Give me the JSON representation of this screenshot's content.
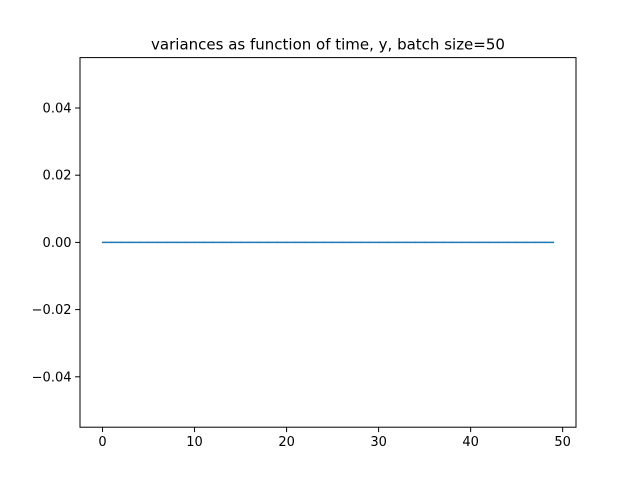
{
  "chart_data": {
    "type": "line",
    "title": "variances as function of time, y, batch size=50",
    "xlabel": "",
    "ylabel": "",
    "xlim": [
      -2.45,
      51.45
    ],
    "ylim": [
      -0.055,
      0.055
    ],
    "xticks": [
      0,
      10,
      20,
      30,
      40,
      50
    ],
    "xtick_labels": [
      "0",
      "10",
      "20",
      "30",
      "40",
      "50"
    ],
    "yticks": [
      -0.04,
      -0.02,
      0.0,
      0.02,
      0.04
    ],
    "ytick_labels": [
      "−0.04",
      "−0.02",
      "0.00",
      "0.02",
      "0.04"
    ],
    "grid": false,
    "series": [
      {
        "color": "#1f77b4",
        "x": [
          0,
          1,
          2,
          3,
          4,
          5,
          6,
          7,
          8,
          9,
          10,
          11,
          12,
          13,
          14,
          15,
          16,
          17,
          18,
          19,
          20,
          21,
          22,
          23,
          24,
          25,
          26,
          27,
          28,
          29,
          30,
          31,
          32,
          33,
          34,
          35,
          36,
          37,
          38,
          39,
          40,
          41,
          42,
          43,
          44,
          45,
          46,
          47,
          48,
          49
        ],
        "y": [
          0,
          0,
          0,
          0,
          0,
          0,
          0,
          0,
          0,
          0,
          0,
          0,
          0,
          0,
          0,
          0,
          0,
          0,
          0,
          0,
          0,
          0,
          0,
          0,
          0,
          0,
          0,
          0,
          0,
          0,
          0,
          0,
          0,
          0,
          0,
          0,
          0,
          0,
          0,
          0,
          0,
          0,
          0,
          0,
          0,
          0,
          0,
          0,
          0,
          0
        ]
      }
    ]
  }
}
